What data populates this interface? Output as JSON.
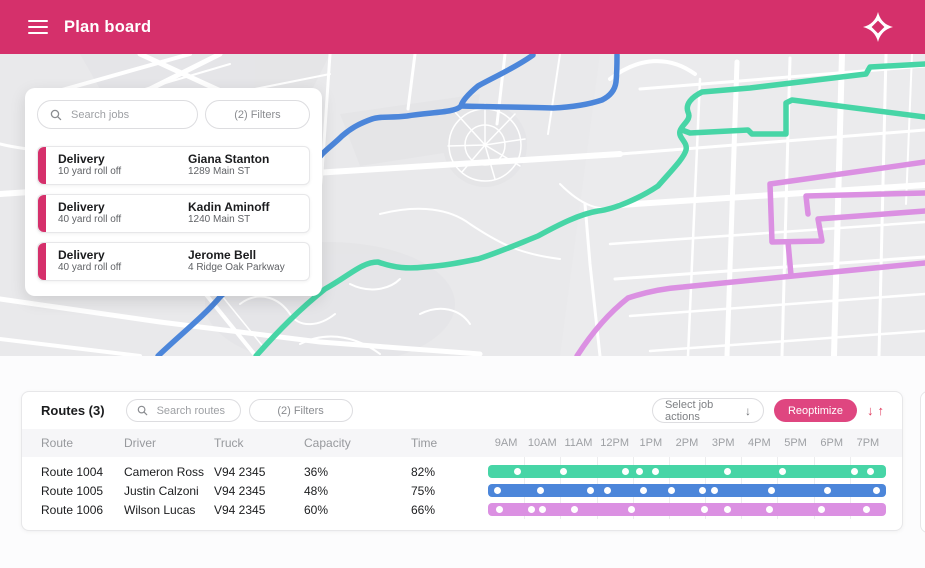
{
  "colors": {
    "brand": "#D5306B",
    "button": "#DF4680",
    "sort_arrows": "#E0395C",
    "green": "#47D5A6",
    "blue": "#4C86DA",
    "pink": "#DB90E2"
  },
  "header": {
    "title": "Plan board"
  },
  "jobs_panel": {
    "search_placeholder": "Search jobs",
    "filters_label": "(2) Filters",
    "cards": [
      {
        "type": "Delivery",
        "subtype": "10 yard roll off",
        "name": "Giana Stanton",
        "address": "1289 Main ST"
      },
      {
        "type": "Delivery",
        "subtype": "40 yard roll off",
        "name": "Kadin Aminoff",
        "address": "1240 Main ST"
      },
      {
        "type": "Delivery",
        "subtype": "40 yard roll off",
        "name": "Jerome Bell",
        "address": "4 Ridge Oak Parkway"
      }
    ]
  },
  "routes_panel": {
    "title": "Routes (3)",
    "search_placeholder": "Search routes",
    "filters_label": "(2) Filters",
    "job_actions_label": "Select job actions",
    "job_actions_arrow": "↓",
    "reoptimize_label": "Reoptimize",
    "sort_down": "↓",
    "sort_up": "↑",
    "columns": [
      "Route",
      "Driver",
      "Truck",
      "Capacity",
      "Time"
    ],
    "hours": [
      "9AM",
      "10AM",
      "11AM",
      "12PM",
      "1PM",
      "2PM",
      "3PM",
      "4PM",
      "5PM",
      "6PM",
      "7PM"
    ],
    "rows": [
      {
        "route": "Route 1004",
        "driver": "Cameron Ross",
        "truck": "V94 2345",
        "capacity": "36%",
        "time": "82%",
        "color_key": "green",
        "stops": [
          0.073,
          0.19,
          0.346,
          0.381,
          0.422,
          0.601,
          0.74,
          0.922,
          0.962
        ]
      },
      {
        "route": "Route 1005",
        "driver": "Justin Calzoni",
        "truck": "V94 2345",
        "capacity": "48%",
        "time": "75%",
        "color_key": "blue",
        "stops": [
          0.023,
          0.131,
          0.258,
          0.3,
          0.391,
          0.462,
          0.538,
          0.568,
          0.712,
          0.853,
          0.975
        ]
      },
      {
        "route": "Route 1006",
        "driver": "Wilson Lucas",
        "truck": "V94 2345",
        "capacity": "60%",
        "time": "66%",
        "color_key": "pink",
        "stops": [
          0.028,
          0.109,
          0.136,
          0.217,
          0.361,
          0.545,
          0.601,
          0.707,
          0.838,
          0.952
        ]
      }
    ]
  }
}
